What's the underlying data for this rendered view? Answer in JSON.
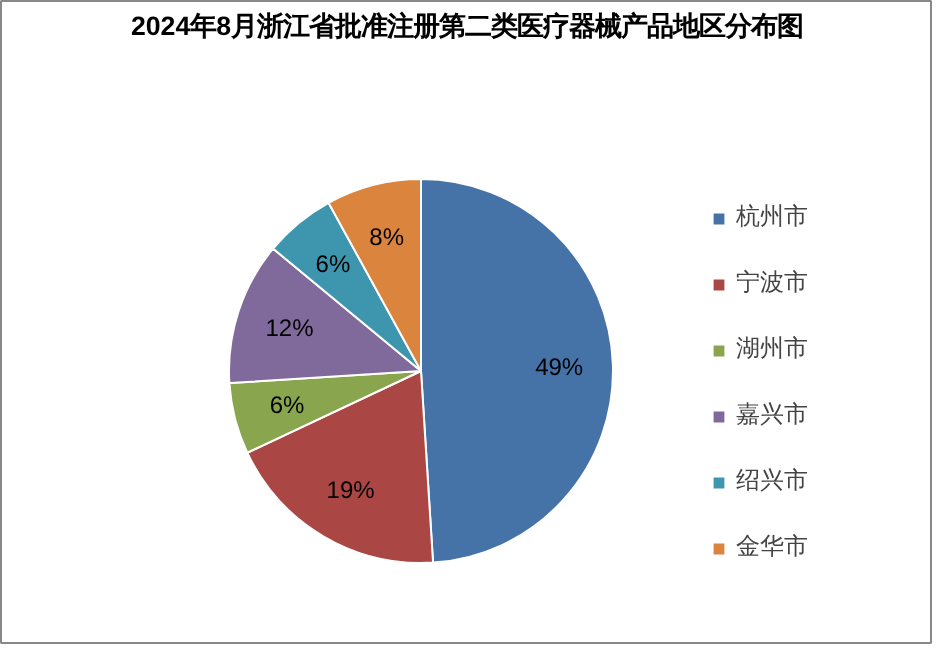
{
  "chart_data": {
    "type": "pie",
    "title": "2024年8月浙江省批准注册第二类医疗器械产品地区分布图",
    "categories": [
      "杭州市",
      "宁波市",
      "湖州市",
      "嘉兴市",
      "绍兴市",
      "金华市"
    ],
    "values": [
      49,
      19,
      6,
      12,
      6,
      8
    ],
    "colors": [
      "#4572a7",
      "#aa4643",
      "#89a54e",
      "#80699b",
      "#3d96ae",
      "#db843d"
    ],
    "value_labels": [
      "49%",
      "19%",
      "6%",
      "12%",
      "6%",
      "8%"
    ],
    "legend": "right"
  }
}
